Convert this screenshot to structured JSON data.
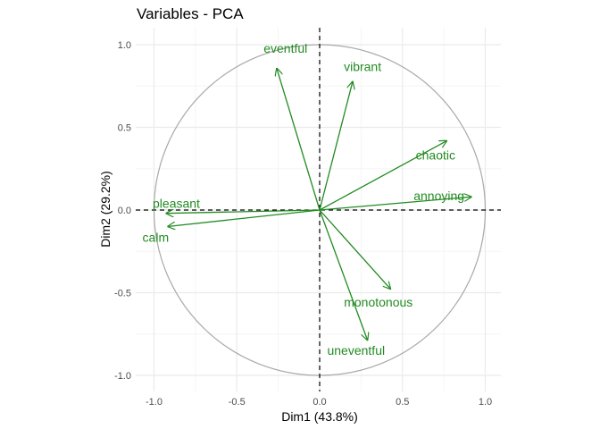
{
  "chart_data": {
    "type": "scatter",
    "subtype": "pca-variable-correlation-circle",
    "title": "Variables - PCA",
    "xlabel": "Dim1 (43.8%)",
    "ylabel": "Dim2 (29.2%)",
    "xlim": [
      -1.0,
      1.0
    ],
    "ylim": [
      -1.0,
      1.0
    ],
    "xticks": [
      "-1.0",
      "-0.5",
      "0.0",
      "0.5",
      "1.0"
    ],
    "yticks": [
      "-1.0",
      "-0.5",
      "0.0",
      "0.5",
      "1.0"
    ],
    "grid": true,
    "colors": {
      "arrow": "#228B22",
      "circle": "#A9A9A9",
      "refline": "#000000",
      "grid_major": "#EBEBEB",
      "grid_minor": "#F5F5F5"
    },
    "variables": [
      {
        "name": "eventful",
        "x": -0.26,
        "y": 0.86
      },
      {
        "name": "vibrant",
        "x": 0.2,
        "y": 0.78
      },
      {
        "name": "chaotic",
        "x": 0.77,
        "y": 0.42
      },
      {
        "name": "annoying",
        "x": 0.92,
        "y": 0.08
      },
      {
        "name": "pleasant",
        "x": -0.93,
        "y": -0.02
      },
      {
        "name": "calm",
        "x": -0.92,
        "y": -0.1
      },
      {
        "name": "monotonous",
        "x": 0.43,
        "y": -0.48
      },
      {
        "name": "uneventful",
        "x": 0.29,
        "y": -0.79
      }
    ]
  }
}
